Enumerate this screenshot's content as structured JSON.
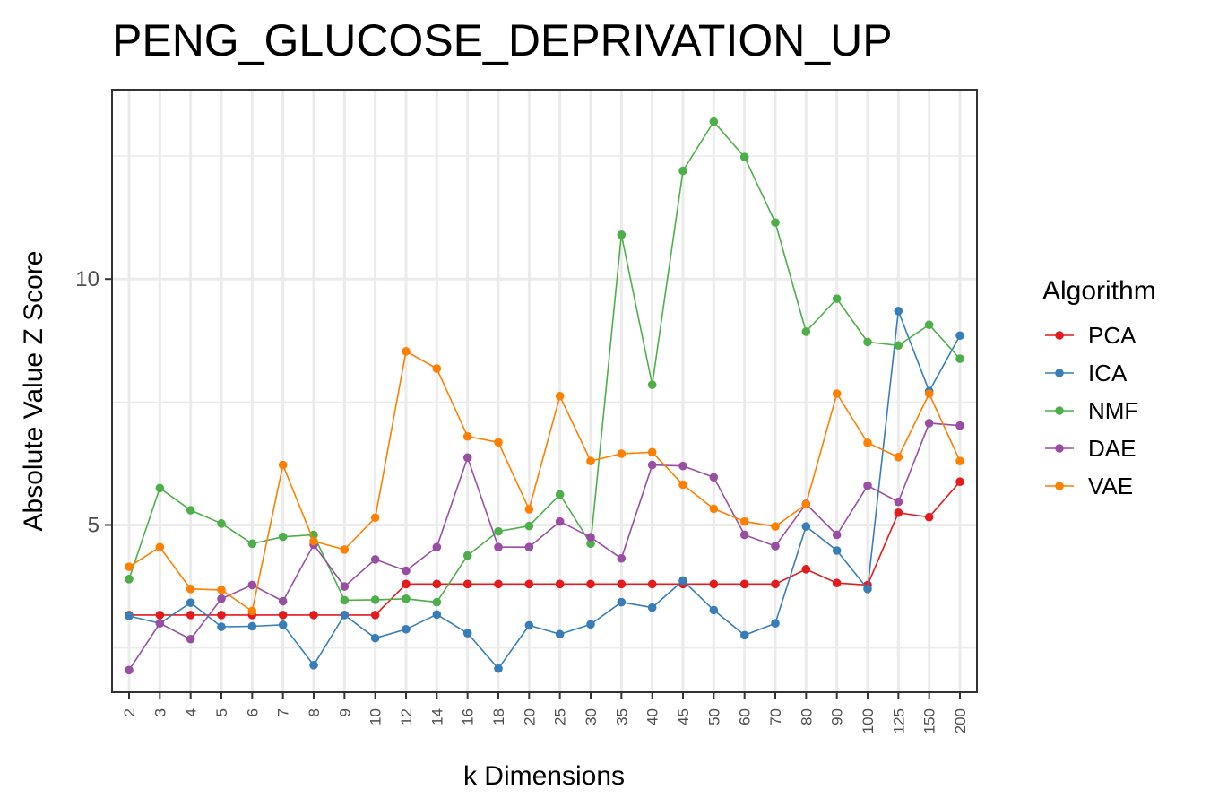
{
  "chart_data": {
    "type": "line",
    "title": "PENG_GLUCOSE_DEPRIVATION_UP",
    "xlabel": "k Dimensions",
    "ylabel": "Absolute Value Z Score",
    "categories": [
      "2",
      "3",
      "4",
      "5",
      "6",
      "7",
      "8",
      "9",
      "10",
      "12",
      "14",
      "16",
      "18",
      "20",
      "25",
      "30",
      "35",
      "40",
      "45",
      "50",
      "60",
      "70",
      "80",
      "90",
      "100",
      "125",
      "150",
      "200"
    ],
    "ylim": [
      1.6,
      13.85
    ],
    "yticks": [
      5,
      10
    ],
    "grid": true,
    "legend": {
      "title": "Algorithm",
      "position": "right"
    },
    "series": [
      {
        "name": "PCA",
        "color": "#e41a1c",
        "values": [
          3.17,
          3.17,
          3.17,
          3.17,
          3.17,
          3.17,
          3.17,
          3.17,
          3.17,
          3.8,
          3.8,
          3.8,
          3.8,
          3.8,
          3.8,
          3.8,
          3.8,
          3.8,
          3.8,
          3.8,
          3.8,
          3.8,
          4.1,
          3.82,
          3.78,
          5.25,
          5.16,
          5.88
        ]
      },
      {
        "name": "ICA",
        "color": "#377eb8",
        "values": [
          3.15,
          3.0,
          3.42,
          2.93,
          2.94,
          2.97,
          2.15,
          3.17,
          2.7,
          2.88,
          3.18,
          2.8,
          2.08,
          2.96,
          2.78,
          2.98,
          3.43,
          3.32,
          3.87,
          3.27,
          2.76,
          3.0,
          4.97,
          4.48,
          3.7,
          9.35,
          7.72,
          8.85
        ]
      },
      {
        "name": "NMF",
        "color": "#4daf4a",
        "values": [
          3.9,
          5.75,
          5.3,
          5.03,
          4.62,
          4.76,
          4.8,
          3.47,
          3.48,
          3.5,
          3.43,
          4.38,
          4.87,
          4.98,
          5.62,
          4.62,
          10.9,
          7.85,
          12.2,
          13.2,
          12.48,
          11.15,
          8.93,
          9.6,
          8.72,
          8.65,
          9.07,
          8.38
        ]
      },
      {
        "name": "DAE",
        "color": "#984ea3",
        "values": [
          2.05,
          3.0,
          2.68,
          3.5,
          3.78,
          3.45,
          4.6,
          3.75,
          4.3,
          4.07,
          4.55,
          6.37,
          4.55,
          4.55,
          5.07,
          4.75,
          4.32,
          6.22,
          6.2,
          5.97,
          4.8,
          4.57,
          5.43,
          4.8,
          5.8,
          5.47,
          7.07,
          7.02
        ]
      },
      {
        "name": "VAE",
        "color": "#ff7f00",
        "values": [
          4.15,
          4.55,
          3.7,
          3.68,
          3.25,
          6.22,
          4.67,
          4.5,
          5.15,
          8.53,
          8.18,
          6.8,
          6.68,
          5.32,
          7.62,
          6.3,
          6.45,
          6.48,
          5.82,
          5.33,
          5.07,
          4.97,
          5.42,
          7.67,
          6.67,
          6.38,
          7.67,
          6.3
        ]
      }
    ]
  }
}
